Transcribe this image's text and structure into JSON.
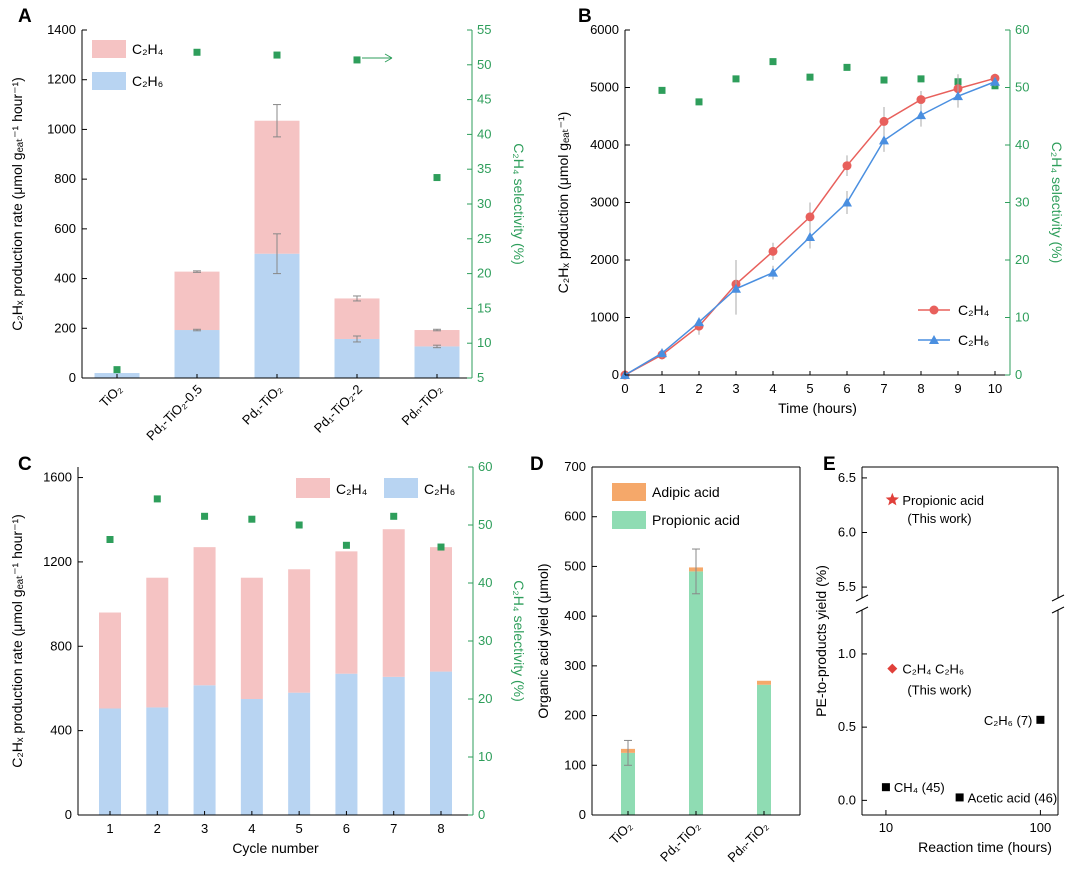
{
  "colors": {
    "c2h4_bar": "#f5c3c3",
    "c2h6_bar": "#b8d4f2",
    "selectivity": "#2e9e5b",
    "c2h4_line": "#e8605c",
    "c2h6_line": "#4a8fe0",
    "adipic": "#f5a86a",
    "propionic": "#8fdcb3",
    "axis": "#000000"
  },
  "chart_data": [
    {
      "panel": "A",
      "type": "bar",
      "stacked": true,
      "categories": [
        "TiO₂",
        "Pd₁-TiO₂-0.5",
        "Pd₁-TiO₂",
        "Pd₁-TiO₂-2",
        "Pdₙ-TiO₂"
      ],
      "series": [
        {
          "name": "C₂H₆",
          "values": [
            20,
            193,
            500,
            157,
            127
          ],
          "errors": [
            0,
            3,
            80,
            12,
            5
          ]
        },
        {
          "name": "C₂H₄",
          "values": [
            0,
            235,
            535,
            163,
            66
          ],
          "errors": [
            0,
            3,
            65,
            10,
            3
          ]
        }
      ],
      "selectivity": {
        "name": "C₂H₄ selectivity (%)",
        "values": [
          6.2,
          51.8,
          51.4,
          50.7,
          33.8
        ],
        "ylim": [
          5,
          55
        ]
      },
      "legend": [
        "C₂H₄",
        "C₂H₆"
      ],
      "xlabel": "",
      "ylabel": "C₂Hₓ production rate (μmol gₑₐₜ⁻¹ hour⁻¹)",
      "y2label": "C₂H₄ selectivity (%)",
      "ylim": [
        0,
        1400
      ],
      "yticks": [
        0,
        200,
        400,
        600,
        800,
        1000,
        1200,
        1400
      ],
      "y2ticks": [
        5,
        10,
        15,
        20,
        25,
        30,
        35,
        40,
        45,
        50,
        55
      ]
    },
    {
      "panel": "B",
      "type": "line",
      "x": [
        0,
        1,
        2,
        3,
        4,
        5,
        6,
        7,
        8,
        9,
        10
      ],
      "series": [
        {
          "name": "C₂H₄",
          "values": [
            0,
            350,
            850,
            1580,
            2150,
            2750,
            3640,
            4410,
            4790,
            4980,
            5160
          ],
          "errors": [
            30,
            80,
            150,
            420,
            150,
            250,
            180,
            250,
            150,
            250,
            80
          ]
        },
        {
          "name": "C₂H₆",
          "values": [
            0,
            380,
            920,
            1500,
            1780,
            2400,
            3000,
            4080,
            4520,
            4850,
            5100
          ],
          "errors": [
            30,
            80,
            80,
            450,
            120,
            200,
            200,
            200,
            200,
            200,
            80
          ]
        }
      ],
      "selectivity": {
        "name": "C₂H₄ selectivity (%)",
        "values": [
          null,
          49.5,
          47.5,
          51.5,
          54.5,
          51.8,
          53.5,
          51.3,
          51.5,
          51,
          50.3
        ],
        "ylim": [
          0,
          60
        ]
      },
      "xlabel": "Time (hours)",
      "ylabel": "C₂Hₓ production (μmol gₑₐₜ⁻¹)",
      "y2label": "C₂H₄ selectivity (%)",
      "xlim": [
        0,
        10
      ],
      "ylim": [
        0,
        6000
      ],
      "yticks": [
        0,
        1000,
        2000,
        3000,
        4000,
        5000,
        6000
      ],
      "y2ticks": [
        0,
        10,
        20,
        30,
        40,
        50,
        60
      ],
      "xticks": [
        0,
        1,
        2,
        3,
        4,
        5,
        6,
        7,
        8,
        9,
        10
      ]
    },
    {
      "panel": "C",
      "type": "bar",
      "stacked": true,
      "categories": [
        "1",
        "2",
        "3",
        "4",
        "5",
        "6",
        "7",
        "8"
      ],
      "series": [
        {
          "name": "C₂H₆",
          "values": [
            505,
            510,
            615,
            550,
            580,
            670,
            655,
            680
          ]
        },
        {
          "name": "C₂H₄",
          "values": [
            455,
            615,
            655,
            575,
            585,
            580,
            700,
            590
          ]
        }
      ],
      "selectivity": {
        "name": "C₂H₄ selectivity (%)",
        "values": [
          47.5,
          54.5,
          51.5,
          51,
          50,
          46.5,
          51.5,
          46.2
        ],
        "ylim": [
          0,
          60
        ]
      },
      "legend": [
        "C₂H₄",
        "C₂H₆"
      ],
      "xlabel": "Cycle number",
      "ylabel": "C₂Hₓ production rate (μmol gₑₐₜ⁻¹ hour⁻¹)",
      "y2label": "C₂H₄ selectivity (%)",
      "ylim": [
        0,
        1650
      ],
      "yticks": [
        0,
        400,
        800,
        1200,
        1600
      ],
      "y2ticks": [
        0,
        10,
        20,
        30,
        40,
        50,
        60
      ]
    },
    {
      "panel": "D",
      "type": "bar",
      "stacked": true,
      "categories": [
        "TiO₂",
        "Pd₁-TiO₂",
        "Pdₙ-TiO₂"
      ],
      "series": [
        {
          "name": "Propionic acid",
          "values": [
            125,
            490,
            262
          ],
          "errors": [
            25,
            45,
            0
          ]
        },
        {
          "name": "Adipic acid",
          "values": [
            8,
            8,
            8
          ],
          "errors": [
            0,
            0,
            0
          ]
        }
      ],
      "legend": [
        "Adipic acid",
        "Propionic acid"
      ],
      "ylabel": "Organic acid yield (μmol)",
      "ylim": [
        0,
        700
      ],
      "yticks": [
        0,
        100,
        200,
        300,
        400,
        500,
        600,
        700
      ]
    },
    {
      "panel": "E",
      "type": "scatter",
      "x_scale": "log",
      "points": [
        {
          "label": "Propionic acid",
          "note": "(This work)",
          "x": 11,
          "y": 6.3,
          "marker": "star"
        },
        {
          "label": "C₂H₄ C₂H₆",
          "note": "(This work)",
          "x": 11,
          "y": 0.9,
          "marker": "diamond"
        },
        {
          "label": "C₂H₆ (7)",
          "x": 100,
          "y": 0.55,
          "marker": "square"
        },
        {
          "label": "CH₄ (45)",
          "x": 10,
          "y": 0.09,
          "marker": "square"
        },
        {
          "label": "Acetic acid (46)",
          "x": 30,
          "y": 0.02,
          "marker": "square"
        }
      ],
      "xlabel": "Reaction time (hours)",
      "ylabel": "PE-to-products yield (%)",
      "xlim": [
        7,
        130
      ],
      "ylim_lower": [
        -0.1,
        1.3
      ],
      "ylim_upper": [
        5.4,
        6.6
      ],
      "yticks_lower": [
        "0.0",
        "0.5",
        "1.0"
      ],
      "yticks_upper": [
        "5.5",
        "6.0",
        "6.5"
      ],
      "xticks": [
        "10",
        "100"
      ],
      "axis_break": true
    }
  ],
  "labels": {
    "panel_a": "A",
    "panel_b": "B",
    "panel_c": "C",
    "panel_d": "D",
    "panel_e": "E"
  }
}
